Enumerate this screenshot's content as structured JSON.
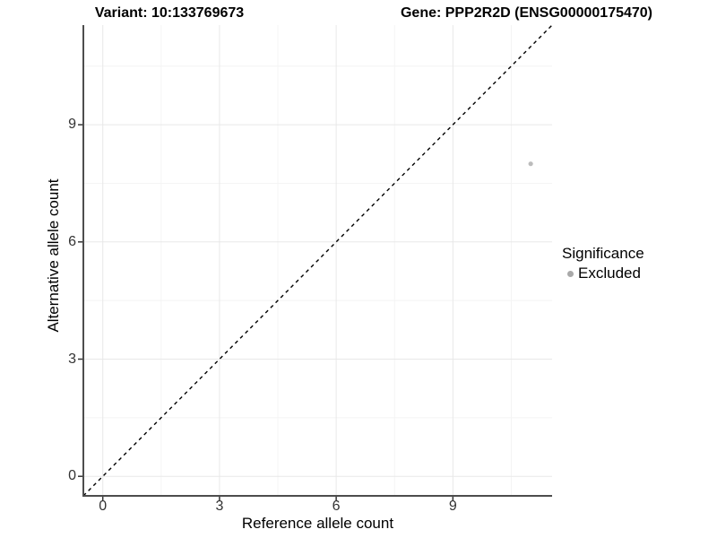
{
  "chart_data": {
    "type": "scatter",
    "titles": {
      "left": "Variant: 10:133769673",
      "right": "Gene: PPP2R2D (ENSG00000175470)"
    },
    "xlabel": "Reference allele count",
    "ylabel": "Alternative allele count",
    "xlim": [
      -0.5,
      11.55
    ],
    "ylim": [
      -0.5,
      11.55
    ],
    "xticks": [
      0,
      3,
      6,
      9
    ],
    "yticks": [
      0,
      3,
      6,
      9
    ],
    "xticks_minor": [
      1.5,
      4.5,
      7.5,
      10.5
    ],
    "yticks_minor": [
      1.5,
      4.5,
      7.5,
      10.5
    ],
    "grid": true,
    "series": [
      {
        "name": "Excluded",
        "color": "#bcbcbc",
        "points": [
          {
            "x": 11,
            "y": 8
          }
        ]
      }
    ],
    "reference_line": {
      "type": "identity",
      "style": "dashed",
      "color": "#000000",
      "from": [
        -0.5,
        -0.5
      ],
      "to": [
        11.55,
        11.55
      ]
    },
    "legend": {
      "title": "Significance",
      "position": "right",
      "entries": [
        {
          "label": "Excluded",
          "marker_color": "#a9a9a9"
        }
      ]
    },
    "colors": {
      "axis_line": "#4d4d4d",
      "tick_mark": "#333333",
      "grid_major": "#e8e8e8",
      "grid_minor": "#f4f4f4",
      "background": "#ffffff"
    }
  }
}
